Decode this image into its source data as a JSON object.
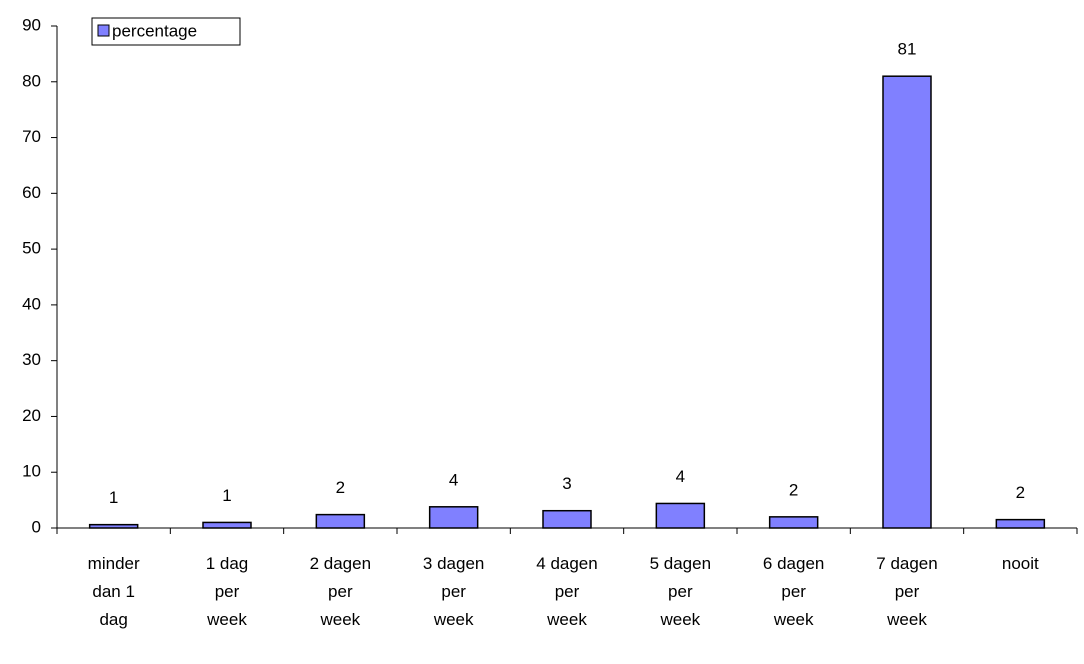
{
  "chart_data": {
    "type": "bar",
    "categories": [
      "minder dan 1 dag",
      "1 dag per week",
      "2 dagen per week",
      "3 dagen per week",
      "4 dagen per week",
      "5 dagen per week",
      "6 dagen per week",
      "7 dagen per week",
      "nooit"
    ],
    "series": [
      {
        "name": "percentage",
        "color": "#8080ff",
        "values": [
          0.6,
          1.0,
          2.4,
          3.8,
          3.1,
          4.4,
          2.0,
          81,
          1.5
        ],
        "value_labels": [
          "1",
          "1",
          "2",
          "4",
          "3",
          "4",
          "2",
          "81",
          "2"
        ]
      }
    ],
    "ylim": [
      0,
      90
    ],
    "yticks": [
      0,
      10,
      20,
      30,
      40,
      50,
      60,
      70,
      80,
      90
    ],
    "grid": false,
    "legend": "top-left"
  }
}
